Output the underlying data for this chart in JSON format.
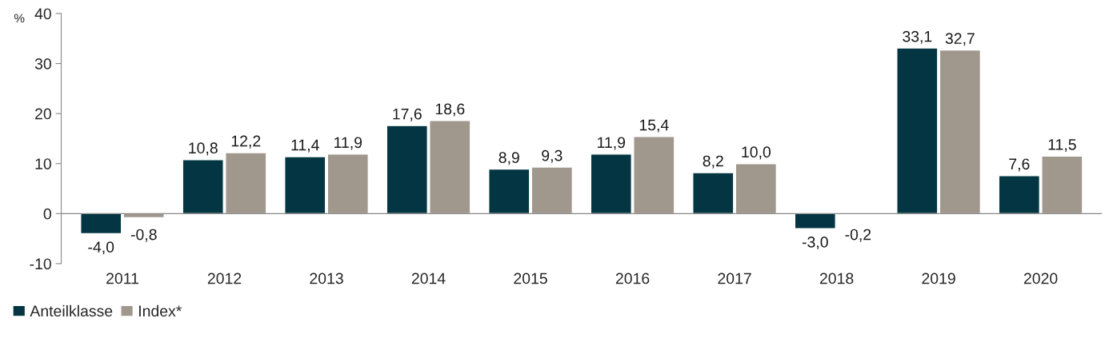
{
  "chart_data": {
    "type": "bar",
    "ylabel": "%",
    "categories": [
      "2011",
      "2012",
      "2013",
      "2014",
      "2015",
      "2016",
      "2017",
      "2018",
      "2019",
      "2020"
    ],
    "series": [
      {
        "name": "Anteilklasse",
        "color": "#033642",
        "values": [
          -4.0,
          10.8,
          11.4,
          17.6,
          8.9,
          11.9,
          8.2,
          -3.0,
          33.1,
          7.6
        ],
        "value_labels": [
          "-4,0",
          "10,8",
          "11,4",
          "17,6",
          "8,9",
          "11,9",
          "8,2",
          "-3,0",
          "33,1",
          "7,6"
        ]
      },
      {
        "name": "Index*",
        "color": "#a0978d",
        "values": [
          -0.8,
          12.2,
          11.9,
          18.6,
          9.3,
          15.4,
          10.0,
          -0.2,
          32.7,
          11.5
        ],
        "value_labels": [
          "-0,8",
          "12,2",
          "11,9",
          "18,6",
          "9,3",
          "15,4",
          "10,0",
          "-0,2",
          "32,7",
          "11,5"
        ]
      }
    ],
    "ylim": [
      -10,
      40
    ],
    "yticks": [
      -10,
      0,
      10,
      20,
      30,
      40
    ],
    "legend": "bottom left"
  }
}
